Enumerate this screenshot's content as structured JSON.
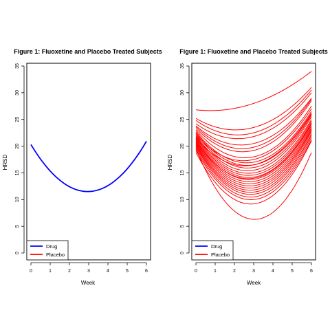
{
  "chart_data": [
    {
      "type": "line",
      "title": "Figure 1: Fluoxetine and Placebo Treated Subjects",
      "xlabel": "Week",
      "ylabel": "HRSD",
      "xlim": [
        0,
        6
      ],
      "ylim": [
        0,
        35
      ],
      "xticks": [
        "0",
        "1",
        "2",
        "3",
        "4",
        "5",
        "6"
      ],
      "yticks": [
        "0",
        "5",
        "10",
        "15",
        "20",
        "25",
        "30",
        "35"
      ],
      "legend": {
        "position": "bottom-left",
        "entries": [
          {
            "label": "Drug",
            "color": "#0000ff"
          },
          {
            "label": "Placebo",
            "color": "#ff0000"
          }
        ]
      },
      "curve_form": "quadratic",
      "series": [
        {
          "group": "Drug",
          "color": "#0000ff",
          "y0": 20.3,
          "vertex_week": 2.95,
          "min": 11.5
        }
      ]
    },
    {
      "type": "line",
      "title": "Figure 1: Fluoxetine and Placebo Treated Subjects",
      "xlabel": "Week",
      "ylabel": "HRSD",
      "xlim": [
        0,
        6
      ],
      "ylim": [
        0,
        35
      ],
      "xticks": [
        "0",
        "1",
        "2",
        "3",
        "4",
        "5",
        "6"
      ],
      "yticks": [
        "0",
        "5",
        "10",
        "15",
        "20",
        "25",
        "30",
        "35"
      ],
      "legend": {
        "position": "bottom-left",
        "entries": [
          {
            "label": "Drug",
            "color": "#0000ff"
          },
          {
            "label": "Placebo",
            "color": "#ff0000"
          }
        ]
      },
      "curve_form": "quadratic",
      "series": [
        {
          "group": "Placebo",
          "color": "#ff0000",
          "y0": 26.8,
          "y3": 28.0,
          "y6": 34.0
        },
        {
          "group": "Placebo",
          "color": "#ff0000",
          "y0": 25.2,
          "y3": 23.5,
          "y6": 31.0
        },
        {
          "group": "Placebo",
          "color": "#ff0000",
          "y0": 24.8,
          "y3": 22.5,
          "y6": 30.5
        },
        {
          "group": "Placebo",
          "color": "#ff0000",
          "y0": 24.2,
          "y3": 21.8,
          "y6": 30.0
        },
        {
          "group": "Placebo",
          "color": "#ff0000",
          "y0": 23.8,
          "y3": 20.5,
          "y6": 29.0
        },
        {
          "group": "Placebo",
          "color": "#ff0000",
          "y0": 23.3,
          "y3": 19.2,
          "y6": 28.5
        },
        {
          "group": "Placebo",
          "color": "#ff0000",
          "y0": 23.0,
          "y3": 18.0,
          "y6": 27.5
        },
        {
          "group": "Placebo",
          "color": "#ff0000",
          "y0": 22.7,
          "y3": 17.0,
          "y6": 26.5
        },
        {
          "group": "Placebo",
          "color": "#ff0000",
          "y0": 22.5,
          "y3": 16.5,
          "y6": 26.0
        },
        {
          "group": "Placebo",
          "color": "#ff0000",
          "y0": 22.3,
          "y3": 16.0,
          "y6": 25.8
        },
        {
          "group": "Placebo",
          "color": "#ff0000",
          "y0": 22.0,
          "y3": 15.5,
          "y6": 25.5
        },
        {
          "group": "Placebo",
          "color": "#ff0000",
          "y0": 21.8,
          "y3": 15.0,
          "y6": 25.0
        },
        {
          "group": "Placebo",
          "color": "#ff0000",
          "y0": 21.6,
          "y3": 14.6,
          "y6": 24.7
        },
        {
          "group": "Placebo",
          "color": "#ff0000",
          "y0": 21.4,
          "y3": 14.2,
          "y6": 24.4
        },
        {
          "group": "Placebo",
          "color": "#ff0000",
          "y0": 21.2,
          "y3": 13.8,
          "y6": 24.1
        },
        {
          "group": "Placebo",
          "color": "#ff0000",
          "y0": 21.0,
          "y3": 13.4,
          "y6": 23.8
        },
        {
          "group": "Placebo",
          "color": "#ff0000",
          "y0": 20.8,
          "y3": 13.0,
          "y6": 23.5
        },
        {
          "group": "Placebo",
          "color": "#ff0000",
          "y0": 20.6,
          "y3": 12.6,
          "y6": 23.2
        },
        {
          "group": "Placebo",
          "color": "#ff0000",
          "y0": 20.4,
          "y3": 12.2,
          "y6": 23.0
        },
        {
          "group": "Placebo",
          "color": "#ff0000",
          "y0": 20.2,
          "y3": 11.8,
          "y6": 22.7
        },
        {
          "group": "Placebo",
          "color": "#ff0000",
          "y0": 20.0,
          "y3": 11.4,
          "y6": 22.3
        },
        {
          "group": "Placebo",
          "color": "#ff0000",
          "y0": 19.8,
          "y3": 11.0,
          "y6": 22.0
        },
        {
          "group": "Placebo",
          "color": "#ff0000",
          "y0": 19.5,
          "y3": 10.5,
          "y6": 21.6
        },
        {
          "group": "Placebo",
          "color": "#ff0000",
          "y0": 19.2,
          "y3": 10.0,
          "y6": 21.2
        },
        {
          "group": "Placebo",
          "color": "#ff0000",
          "y0": 18.8,
          "y3": 9.2,
          "y6": 21.0
        },
        {
          "group": "Placebo",
          "color": "#ff0000",
          "y0": 19.5,
          "y3": 6.3,
          "y6": 18.8
        },
        {
          "group": "Placebo",
          "color": "#ff0000",
          "y0": 22.0,
          "y3": 17.5,
          "y6": 27.0
        },
        {
          "group": "Placebo",
          "color": "#ff0000",
          "y0": 21.5,
          "y3": 16.5,
          "y6": 26.2
        },
        {
          "group": "Placebo",
          "color": "#ff0000",
          "y0": 20.9,
          "y3": 14.0,
          "y6": 24.3
        },
        {
          "group": "Placebo",
          "color": "#ff0000",
          "y0": 23.6,
          "y3": 19.8,
          "y6": 28.8
        }
      ]
    }
  ]
}
